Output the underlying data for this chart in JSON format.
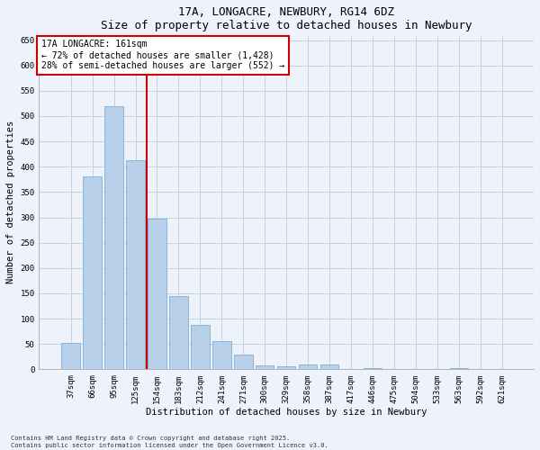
{
  "title": "17A, LONGACRE, NEWBURY, RG14 6DZ",
  "subtitle": "Size of property relative to detached houses in Newbury",
  "xlabel": "Distribution of detached houses by size in Newbury",
  "ylabel": "Number of detached properties",
  "categories": [
    "37sqm",
    "66sqm",
    "95sqm",
    "125sqm",
    "154sqm",
    "183sqm",
    "212sqm",
    "241sqm",
    "271sqm",
    "300sqm",
    "329sqm",
    "358sqm",
    "387sqm",
    "417sqm",
    "446sqm",
    "475sqm",
    "504sqm",
    "533sqm",
    "563sqm",
    "592sqm",
    "621sqm"
  ],
  "values": [
    52,
    380,
    520,
    413,
    297,
    145,
    87,
    55,
    30,
    8,
    6,
    10,
    10,
    1,
    3,
    1,
    0,
    0,
    3,
    0,
    1
  ],
  "bar_color": "#b8d0ea",
  "bar_edge_color": "#7aafd4",
  "vline_x_index": 4,
  "vline_color": "#cc0000",
  "annotation_title": "17A LONGACRE: 161sqm",
  "annotation_line2": "← 72% of detached houses are smaller (1,428)",
  "annotation_line3": "28% of semi-detached houses are larger (552) →",
  "annotation_box_edge": "#cc0000",
  "annotation_fill": "white",
  "ylim": [
    0,
    660
  ],
  "yticks": [
    0,
    50,
    100,
    150,
    200,
    250,
    300,
    350,
    400,
    450,
    500,
    550,
    600,
    650
  ],
  "footnote1": "Contains HM Land Registry data © Crown copyright and database right 2025.",
  "footnote2": "Contains public sector information licensed under the Open Government Licence v3.0.",
  "bg_color": "#eef2fb",
  "grid_color": "#c8d0e0",
  "title_fontsize": 9,
  "axis_label_fontsize": 7.5,
  "tick_fontsize": 6.5,
  "annot_fontsize": 7,
  "footnote_fontsize": 5
}
